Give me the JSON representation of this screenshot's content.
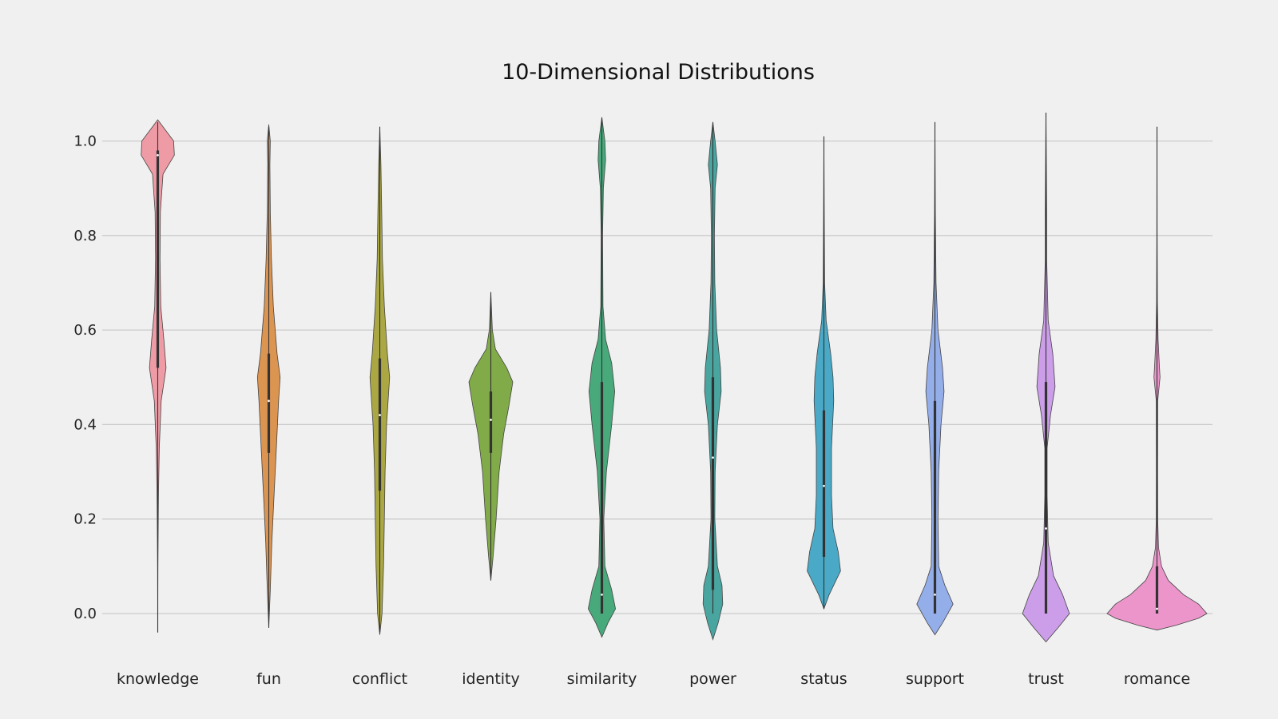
{
  "chart_data": {
    "type": "violin",
    "title": "10-Dimensional Distributions",
    "xlabel": "",
    "ylabel": "",
    "ylim": [
      -0.07,
      1.08
    ],
    "yticks": [
      0.0,
      0.2,
      0.4,
      0.6,
      0.8,
      1.0
    ],
    "ytick_labels": [
      "0.0",
      "0.2",
      "0.4",
      "0.6",
      "0.8",
      "1.0"
    ],
    "grid": "horizontal",
    "categories": [
      "knowledge",
      "fun",
      "conflict",
      "identity",
      "similarity",
      "power",
      "status",
      "support",
      "trust",
      "romance"
    ],
    "series": [
      {
        "category": "knowledge",
        "color": "#ee9ba6",
        "range": [
          -0.04,
          1.04
        ],
        "box": [
          0.52,
          0.98
        ],
        "median": 0.97,
        "density": [
          [
            -0.04,
            0.0
          ],
          [
            0.1,
            0.2
          ],
          [
            0.25,
            1.0
          ],
          [
            0.35,
            2.0
          ],
          [
            0.45,
            4.5
          ],
          [
            0.52,
            11.0
          ],
          [
            0.58,
            8.0
          ],
          [
            0.65,
            4.0
          ],
          [
            0.75,
            3.0
          ],
          [
            0.85,
            3.5
          ],
          [
            0.93,
            7.0
          ],
          [
            0.97,
            22.0
          ],
          [
            1.0,
            21.0
          ],
          [
            1.03,
            7.0
          ],
          [
            1.045,
            0.0
          ]
        ]
      },
      {
        "category": "fun",
        "color": "#dc9451",
        "range": [
          -0.03,
          1.03
        ],
        "box": [
          0.34,
          0.55
        ],
        "median": 0.45,
        "density": [
          [
            -0.03,
            0.0
          ],
          [
            0.05,
            2.0
          ],
          [
            0.15,
            4.0
          ],
          [
            0.25,
            7.0
          ],
          [
            0.35,
            10.0
          ],
          [
            0.45,
            13.0
          ],
          [
            0.5,
            15.0
          ],
          [
            0.55,
            11.0
          ],
          [
            0.65,
            6.0
          ],
          [
            0.75,
            3.5
          ],
          [
            0.85,
            2.0
          ],
          [
            0.95,
            1.5
          ],
          [
            1.0,
            2.0
          ],
          [
            1.035,
            0.0
          ]
        ]
      },
      {
        "category": "conflict",
        "color": "#aba743",
        "range": [
          -0.04,
          1.03
        ],
        "box": [
          0.26,
          0.54
        ],
        "median": 0.42,
        "density": [
          [
            -0.045,
            0.0
          ],
          [
            0.0,
            3.0
          ],
          [
            0.1,
            5.0
          ],
          [
            0.2,
            6.0
          ],
          [
            0.3,
            7.0
          ],
          [
            0.4,
            9.0
          ],
          [
            0.5,
            13.0
          ],
          [
            0.55,
            10.0
          ],
          [
            0.65,
            6.0
          ],
          [
            0.75,
            3.5
          ],
          [
            0.85,
            2.5
          ],
          [
            0.95,
            1.5
          ],
          [
            1.03,
            0.0
          ]
        ]
      },
      {
        "category": "identity",
        "color": "#81ab48",
        "range": [
          0.07,
          0.68
        ],
        "box": [
          0.34,
          0.47
        ],
        "median": 0.41,
        "density": [
          [
            0.07,
            0.0
          ],
          [
            0.12,
            3.0
          ],
          [
            0.2,
            7.0
          ],
          [
            0.3,
            11.0
          ],
          [
            0.38,
            17.0
          ],
          [
            0.44,
            24.0
          ],
          [
            0.49,
            29.0
          ],
          [
            0.52,
            21.0
          ],
          [
            0.56,
            6.0
          ],
          [
            0.6,
            2.0
          ],
          [
            0.68,
            0.0
          ]
        ]
      },
      {
        "category": "similarity",
        "color": "#48a97b",
        "range": [
          0.0,
          1.05
        ],
        "box": [
          0.0,
          0.49
        ],
        "median": 0.04,
        "density": [
          [
            -0.05,
            0.0
          ],
          [
            -0.02,
            8.0
          ],
          [
            0.01,
            18.0
          ],
          [
            0.05,
            13.0
          ],
          [
            0.1,
            4.0
          ],
          [
            0.2,
            2.5
          ],
          [
            0.3,
            6.0
          ],
          [
            0.4,
            13.0
          ],
          [
            0.47,
            17.0
          ],
          [
            0.53,
            13.0
          ],
          [
            0.58,
            5.0
          ],
          [
            0.65,
            1.5
          ],
          [
            0.8,
            1.0
          ],
          [
            0.9,
            2.0
          ],
          [
            0.96,
            5.0
          ],
          [
            1.0,
            4.0
          ],
          [
            1.05,
            0.0
          ]
        ]
      },
      {
        "category": "power",
        "color": "#49a5a0",
        "range": [
          0.0,
          1.04
        ],
        "box": [
          0.05,
          0.5
        ],
        "median": 0.33,
        "density": [
          [
            -0.055,
            0.0
          ],
          [
            -0.02,
            7.0
          ],
          [
            0.02,
            13.0
          ],
          [
            0.06,
            12.0
          ],
          [
            0.1,
            6.0
          ],
          [
            0.2,
            2.5
          ],
          [
            0.3,
            3.0
          ],
          [
            0.4,
            6.0
          ],
          [
            0.47,
            11.0
          ],
          [
            0.52,
            10.0
          ],
          [
            0.6,
            5.0
          ],
          [
            0.7,
            2.5
          ],
          [
            0.8,
            2.0
          ],
          [
            0.9,
            3.0
          ],
          [
            0.95,
            6.0
          ],
          [
            1.0,
            3.0
          ],
          [
            1.04,
            0.0
          ]
        ]
      },
      {
        "category": "status",
        "color": "#4aa9c6",
        "range": [
          0.01,
          1.01
        ],
        "box": [
          0.12,
          0.43
        ],
        "median": 0.27,
        "density": [
          [
            0.01,
            0.0
          ],
          [
            0.04,
            7.0
          ],
          [
            0.09,
            22.0
          ],
          [
            0.13,
            19.0
          ],
          [
            0.18,
            12.0
          ],
          [
            0.25,
            10.0
          ],
          [
            0.35,
            10.0
          ],
          [
            0.45,
            13.0
          ],
          [
            0.5,
            12.0
          ],
          [
            0.55,
            9.0
          ],
          [
            0.62,
            3.0
          ],
          [
            0.7,
            1.0
          ],
          [
            0.85,
            0.4
          ],
          [
            1.01,
            0.0
          ]
        ]
      },
      {
        "category": "support",
        "color": "#94aeea",
        "range": [
          0.0,
          1.04
        ],
        "box": [
          0.0,
          0.45
        ],
        "median": 0.04,
        "density": [
          [
            -0.045,
            0.0
          ],
          [
            -0.02,
            10.0
          ],
          [
            0.02,
            24.0
          ],
          [
            0.06,
            13.0
          ],
          [
            0.1,
            5.0
          ],
          [
            0.2,
            4.0
          ],
          [
            0.3,
            5.0
          ],
          [
            0.4,
            8.0
          ],
          [
            0.47,
            12.0
          ],
          [
            0.52,
            10.0
          ],
          [
            0.6,
            4.0
          ],
          [
            0.7,
            1.5
          ],
          [
            0.85,
            0.5
          ],
          [
            1.04,
            0.0
          ]
        ]
      },
      {
        "category": "trust",
        "color": "#cc9de8",
        "range": [
          0.0,
          1.06
        ],
        "box": [
          0.0,
          0.49
        ],
        "median": 0.18,
        "density": [
          [
            -0.06,
            0.0
          ],
          [
            -0.03,
            16.0
          ],
          [
            0.0,
            31.0
          ],
          [
            0.04,
            22.0
          ],
          [
            0.08,
            10.0
          ],
          [
            0.15,
            3.0
          ],
          [
            0.25,
            1.5
          ],
          [
            0.35,
            1.5
          ],
          [
            0.42,
            6.0
          ],
          [
            0.48,
            12.0
          ],
          [
            0.55,
            9.0
          ],
          [
            0.62,
            3.0
          ],
          [
            0.75,
            1.0
          ],
          [
            0.85,
            1.0
          ],
          [
            0.93,
            0.6
          ],
          [
            1.06,
            0.0
          ]
        ]
      },
      {
        "category": "romance",
        "color": "#eb95ca",
        "range": [
          0.0,
          1.03
        ],
        "box": [
          0.0,
          0.1
        ],
        "median": 0.01,
        "density": [
          [
            -0.035,
            0.0
          ],
          [
            -0.025,
            25.0
          ],
          [
            -0.01,
            55.0
          ],
          [
            0.0,
            66.0
          ],
          [
            0.02,
            55.0
          ],
          [
            0.04,
            35.0
          ],
          [
            0.07,
            15.0
          ],
          [
            0.1,
            6.0
          ],
          [
            0.14,
            2.0
          ],
          [
            0.2,
            1.0
          ],
          [
            0.3,
            0.8
          ],
          [
            0.45,
            1.0
          ],
          [
            0.5,
            4.0
          ],
          [
            0.53,
            3.0
          ],
          [
            0.58,
            1.5
          ],
          [
            0.66,
            0.5
          ],
          [
            0.8,
            0.2
          ],
          [
            1.03,
            0.0
          ]
        ]
      }
    ]
  }
}
